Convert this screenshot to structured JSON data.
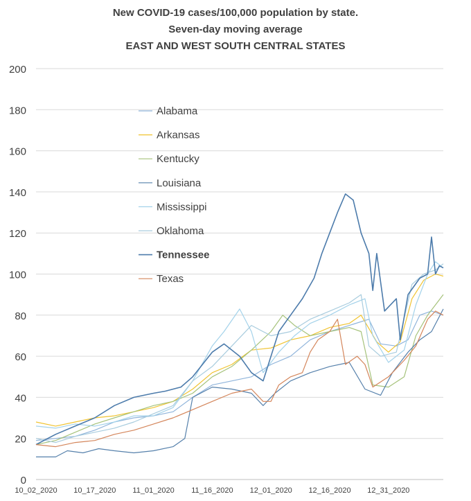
{
  "chart_data": {
    "type": "line",
    "title_lines": [
      "New COVID-19 cases/100,000 population by state.",
      "Seven-day moving average",
      "EAST AND WEST SOUTH CENTRAL STATES"
    ],
    "xlabel": "",
    "ylabel": "",
    "ylim": [
      0,
      200
    ],
    "yticks": [
      0,
      20,
      40,
      60,
      80,
      100,
      120,
      140,
      160,
      180,
      200
    ],
    "xtick_labels": [
      "10_02_2020",
      "10_17_2020",
      "11_01_2020",
      "11_16_2020",
      "12_01_2020",
      "12_16_2020",
      "12_31_2020"
    ],
    "xtick_days": [
      0,
      15,
      30,
      45,
      60,
      75,
      90
    ],
    "x_days_total": 104,
    "grid": "horizontal",
    "legend_position": "left-center",
    "series": [
      {
        "name": "Alabama",
        "color": "#8fb4db",
        "bold": false,
        "points": [
          [
            0,
            19
          ],
          [
            5,
            20
          ],
          [
            10,
            21
          ],
          [
            15,
            24
          ],
          [
            20,
            28
          ],
          [
            25,
            30
          ],
          [
            30,
            31
          ],
          [
            35,
            33
          ],
          [
            40,
            40
          ],
          [
            45,
            46
          ],
          [
            50,
            48
          ],
          [
            55,
            50
          ],
          [
            60,
            56
          ],
          [
            65,
            60
          ],
          [
            70,
            68
          ],
          [
            75,
            72
          ],
          [
            80,
            75
          ],
          [
            85,
            78
          ],
          [
            88,
            66
          ],
          [
            92,
            65
          ],
          [
            95,
            68
          ],
          [
            98,
            80
          ],
          [
            101,
            82
          ],
          [
            104,
            80
          ]
        ]
      },
      {
        "name": "Arkansas",
        "color": "#f0c330",
        "bold": false,
        "points": [
          [
            0,
            28
          ],
          [
            5,
            26
          ],
          [
            10,
            28
          ],
          [
            15,
            30
          ],
          [
            20,
            31
          ],
          [
            25,
            33
          ],
          [
            30,
            35
          ],
          [
            35,
            38
          ],
          [
            40,
            44
          ],
          [
            45,
            52
          ],
          [
            50,
            56
          ],
          [
            55,
            63
          ],
          [
            60,
            64
          ],
          [
            65,
            68
          ],
          [
            70,
            70
          ],
          [
            75,
            74
          ],
          [
            80,
            76
          ],
          [
            83,
            80
          ],
          [
            87,
            67
          ],
          [
            90,
            62
          ],
          [
            93,
            67
          ],
          [
            96,
            88
          ],
          [
            99,
            97
          ],
          [
            102,
            100
          ],
          [
            104,
            99
          ]
        ]
      },
      {
        "name": "Kentucky",
        "color": "#a5c27a",
        "bold": false,
        "points": [
          [
            0,
            17
          ],
          [
            5,
            19
          ],
          [
            10,
            23
          ],
          [
            15,
            27
          ],
          [
            20,
            30
          ],
          [
            25,
            33
          ],
          [
            30,
            36
          ],
          [
            35,
            38
          ],
          [
            40,
            42
          ],
          [
            45,
            50
          ],
          [
            50,
            55
          ],
          [
            55,
            63
          ],
          [
            60,
            72
          ],
          [
            63,
            80
          ],
          [
            66,
            75
          ],
          [
            70,
            70
          ],
          [
            75,
            72
          ],
          [
            80,
            74
          ],
          [
            83,
            72
          ],
          [
            86,
            46
          ],
          [
            90,
            45
          ],
          [
            94,
            50
          ],
          [
            97,
            70
          ],
          [
            100,
            80
          ],
          [
            104,
            90
          ]
        ]
      },
      {
        "name": "Louisiana",
        "color": "#5580ab",
        "bold": false,
        "points": [
          [
            0,
            11
          ],
          [
            5,
            11
          ],
          [
            8,
            14
          ],
          [
            12,
            13
          ],
          [
            16,
            15
          ],
          [
            20,
            14
          ],
          [
            25,
            13
          ],
          [
            30,
            14
          ],
          [
            35,
            16
          ],
          [
            38,
            20
          ],
          [
            40,
            40
          ],
          [
            45,
            45
          ],
          [
            50,
            44
          ],
          [
            55,
            42
          ],
          [
            58,
            36
          ],
          [
            61,
            42
          ],
          [
            65,
            48
          ],
          [
            70,
            52
          ],
          [
            75,
            55
          ],
          [
            80,
            57
          ],
          [
            84,
            44
          ],
          [
            88,
            41
          ],
          [
            91,
            52
          ],
          [
            95,
            62
          ],
          [
            98,
            68
          ],
          [
            101,
            72
          ],
          [
            104,
            83
          ]
        ]
      },
      {
        "name": "Mississippi",
        "color": "#a3d2ea",
        "bold": false,
        "points": [
          [
            0,
            26
          ],
          [
            5,
            25
          ],
          [
            10,
            27
          ],
          [
            15,
            26
          ],
          [
            20,
            28
          ],
          [
            25,
            31
          ],
          [
            30,
            31
          ],
          [
            35,
            35
          ],
          [
            40,
            48
          ],
          [
            45,
            65
          ],
          [
            48,
            72
          ],
          [
            52,
            83
          ],
          [
            55,
            72
          ],
          [
            58,
            52
          ],
          [
            62,
            62
          ],
          [
            66,
            70
          ],
          [
            70,
            76
          ],
          [
            75,
            80
          ],
          [
            80,
            85
          ],
          [
            84,
            88
          ],
          [
            86,
            70
          ],
          [
            90,
            57
          ],
          [
            94,
            63
          ],
          [
            97,
            85
          ],
          [
            100,
            100
          ],
          [
            102,
            106
          ],
          [
            104,
            103
          ]
        ]
      },
      {
        "name": "Oklahoma",
        "color": "#a8ccde",
        "bold": false,
        "points": [
          [
            0,
            20
          ],
          [
            5,
            18
          ],
          [
            10,
            21
          ],
          [
            15,
            23
          ],
          [
            20,
            25
          ],
          [
            25,
            28
          ],
          [
            30,
            32
          ],
          [
            35,
            36
          ],
          [
            40,
            48
          ],
          [
            45,
            55
          ],
          [
            50,
            65
          ],
          [
            55,
            75
          ],
          [
            60,
            70
          ],
          [
            65,
            72
          ],
          [
            70,
            78
          ],
          [
            75,
            82
          ],
          [
            80,
            86
          ],
          [
            83,
            90
          ],
          [
            85,
            65
          ],
          [
            88,
            60
          ],
          [
            92,
            62
          ],
          [
            96,
            95
          ],
          [
            99,
            100
          ],
          [
            102,
            102
          ],
          [
            104,
            105
          ]
        ]
      },
      {
        "name": "Tennessee",
        "color": "#4c7bab",
        "bold": true,
        "points": [
          [
            0,
            17
          ],
          [
            5,
            22
          ],
          [
            10,
            26
          ],
          [
            15,
            30
          ],
          [
            20,
            36
          ],
          [
            25,
            40
          ],
          [
            30,
            42
          ],
          [
            33,
            43
          ],
          [
            37,
            45
          ],
          [
            40,
            50
          ],
          [
            45,
            62
          ],
          [
            48,
            66
          ],
          [
            52,
            60
          ],
          [
            55,
            52
          ],
          [
            58,
            48
          ],
          [
            62,
            72
          ],
          [
            65,
            80
          ],
          [
            68,
            88
          ],
          [
            71,
            98
          ],
          [
            73,
            110
          ],
          [
            75,
            120
          ],
          [
            77,
            130
          ],
          [
            79,
            139
          ],
          [
            81,
            136
          ],
          [
            83,
            120
          ],
          [
            85,
            110
          ],
          [
            86,
            92
          ],
          [
            87,
            110
          ],
          [
            89,
            82
          ],
          [
            92,
            88
          ],
          [
            93,
            68
          ],
          [
            95,
            90
          ],
          [
            98,
            98
          ],
          [
            100,
            100
          ],
          [
            101,
            118
          ],
          [
            102,
            100
          ],
          [
            103,
            104
          ],
          [
            104,
            103
          ]
        ]
      },
      {
        "name": "Texas",
        "color": "#d4855a",
        "bold": false,
        "points": [
          [
            0,
            17
          ],
          [
            5,
            16
          ],
          [
            10,
            18
          ],
          [
            15,
            19
          ],
          [
            20,
            22
          ],
          [
            25,
            24
          ],
          [
            30,
            27
          ],
          [
            35,
            30
          ],
          [
            40,
            34
          ],
          [
            45,
            38
          ],
          [
            50,
            42
          ],
          [
            55,
            44
          ],
          [
            58,
            38
          ],
          [
            60,
            38
          ],
          [
            62,
            46
          ],
          [
            65,
            50
          ],
          [
            68,
            52
          ],
          [
            70,
            62
          ],
          [
            72,
            68
          ],
          [
            75,
            72
          ],
          [
            77,
            78
          ],
          [
            79,
            56
          ],
          [
            82,
            60
          ],
          [
            84,
            56
          ],
          [
            86,
            45
          ],
          [
            90,
            50
          ],
          [
            94,
            58
          ],
          [
            97,
            65
          ],
          [
            100,
            78
          ],
          [
            102,
            82
          ],
          [
            104,
            80
          ]
        ]
      }
    ]
  }
}
